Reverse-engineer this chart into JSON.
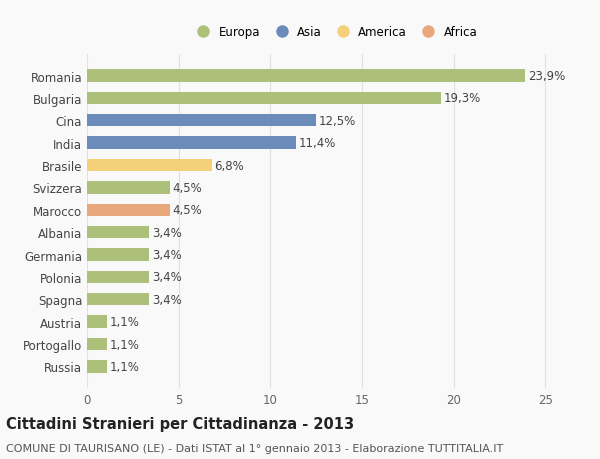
{
  "categories": [
    "Romania",
    "Bulgaria",
    "Cina",
    "India",
    "Brasile",
    "Svizzera",
    "Marocco",
    "Albania",
    "Germania",
    "Polonia",
    "Spagna",
    "Austria",
    "Portogallo",
    "Russia"
  ],
  "values": [
    23.9,
    19.3,
    12.5,
    11.4,
    6.8,
    4.5,
    4.5,
    3.4,
    3.4,
    3.4,
    3.4,
    1.1,
    1.1,
    1.1
  ],
  "labels": [
    "23,9%",
    "19,3%",
    "12,5%",
    "11,4%",
    "6,8%",
    "4,5%",
    "4,5%",
    "3,4%",
    "3,4%",
    "3,4%",
    "3,4%",
    "1,1%",
    "1,1%",
    "1,1%"
  ],
  "colors": [
    "#adc07a",
    "#adc07a",
    "#6b8cba",
    "#6b8cba",
    "#f5d07a",
    "#adc07a",
    "#e8a87c",
    "#adc07a",
    "#adc07a",
    "#adc07a",
    "#adc07a",
    "#adc07a",
    "#adc07a",
    "#adc07a"
  ],
  "legend": [
    {
      "label": "Europa",
      "color": "#adc07a"
    },
    {
      "label": "Asia",
      "color": "#6b8cba"
    },
    {
      "label": "America",
      "color": "#f5d07a"
    },
    {
      "label": "Africa",
      "color": "#e8a87c"
    }
  ],
  "title": "Cittadini Stranieri per Cittadinanza - 2013",
  "subtitle": "COMUNE DI TAURISANO (LE) - Dati ISTAT al 1° gennaio 2013 - Elaborazione TUTTITALIA.IT",
  "xlim": [
    0,
    27
  ],
  "xticks": [
    0,
    5,
    10,
    15,
    20,
    25
  ],
  "background_color": "#f9f9f9",
  "grid_color": "#e0e0e0",
  "bar_height": 0.55,
  "label_fontsize": 8.5,
  "tick_fontsize": 8.5,
  "title_fontsize": 10.5,
  "subtitle_fontsize": 8.0
}
